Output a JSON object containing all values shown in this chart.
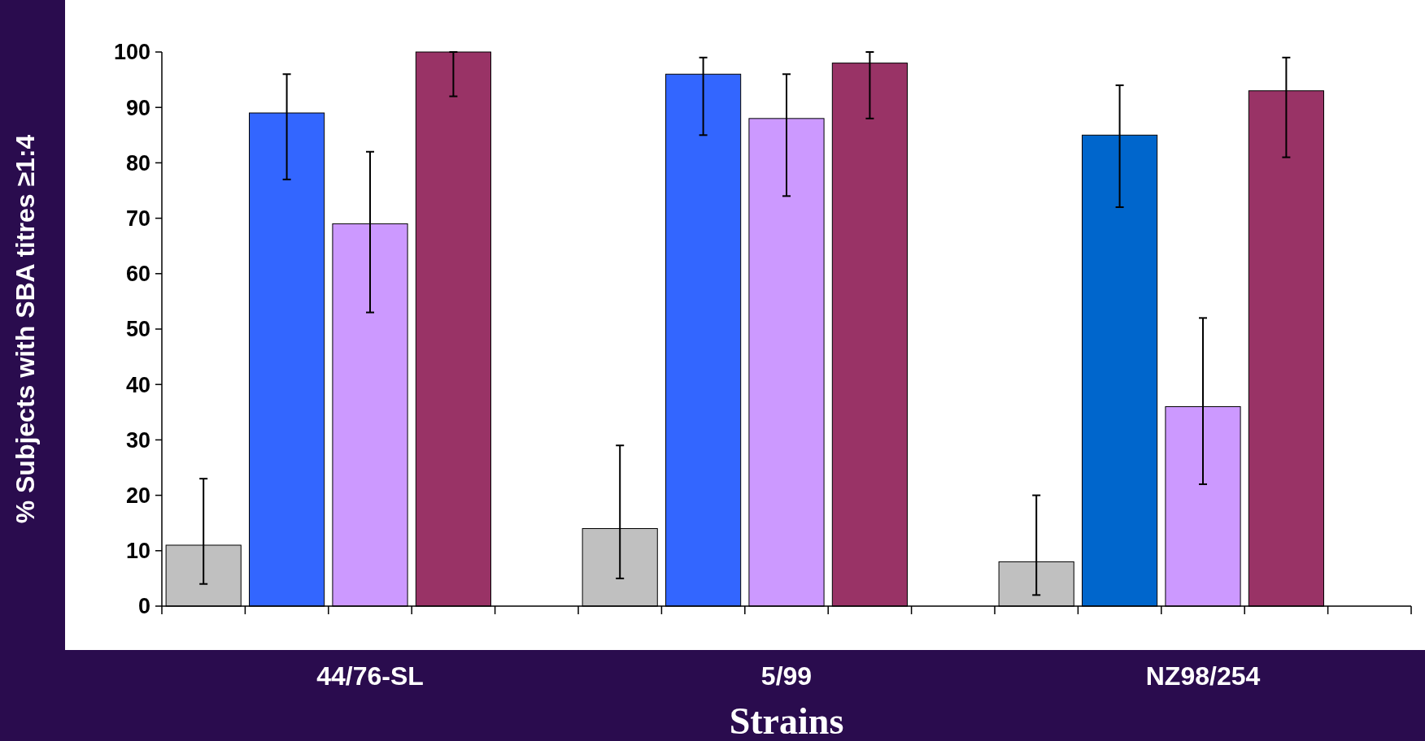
{
  "chart_data": {
    "type": "bar",
    "xlabel": "Strains",
    "ylabel": "% Subjects with SBA titres ≥1:4",
    "categories": [
      "44/76-SL",
      "5/99",
      "NZ98/254"
    ],
    "ylim": [
      0,
      100
    ],
    "yticks": [
      0,
      10,
      20,
      30,
      40,
      50,
      60,
      70,
      80,
      90,
      100
    ],
    "series": [
      {
        "color": "#c0c0c0",
        "values": [
          11,
          14,
          8
        ],
        "errors": [
          [
            4,
            23
          ],
          [
            5,
            29
          ],
          [
            2,
            20
          ]
        ]
      },
      {
        "colors": [
          "#3366ff",
          "#3366ff",
          "#0066cc"
        ],
        "values": [
          89,
          96,
          85
        ],
        "errors": [
          [
            77,
            96
          ],
          [
            85,
            99
          ],
          [
            72,
            94
          ]
        ]
      },
      {
        "color": "#cc99ff",
        "values": [
          69,
          88,
          36
        ],
        "errors": [
          [
            53,
            82
          ],
          [
            74,
            96
          ],
          [
            22,
            52
          ]
        ]
      },
      {
        "color": "#993366",
        "values": [
          100,
          98,
          93
        ],
        "errors": [
          [
            92,
            100
          ],
          [
            88,
            100
          ],
          [
            81,
            99
          ]
        ]
      }
    ]
  }
}
